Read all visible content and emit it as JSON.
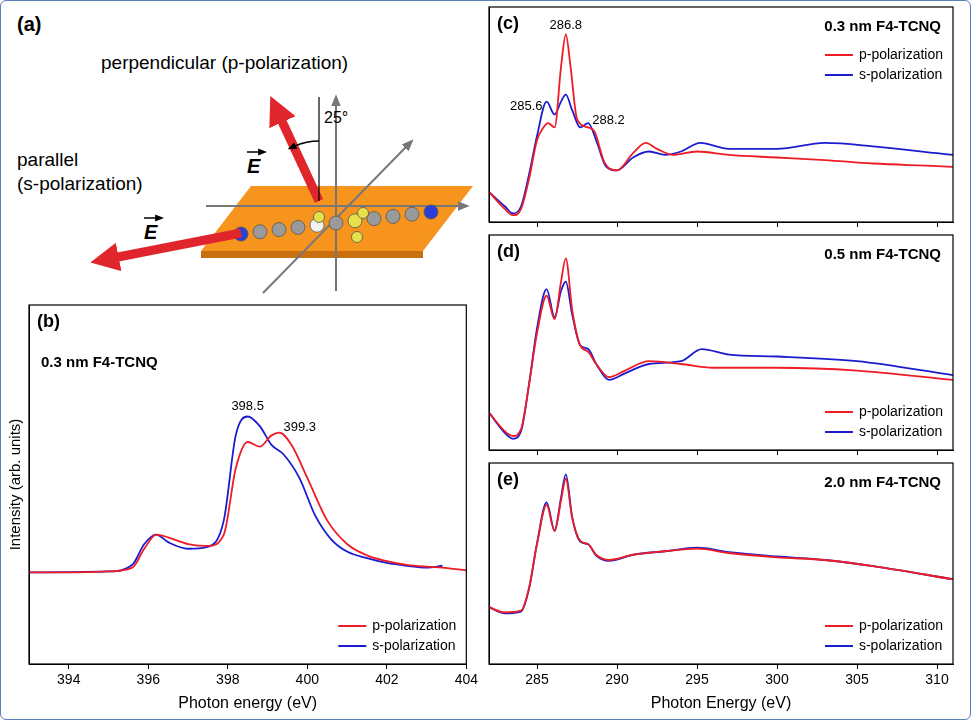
{
  "diagram": {
    "panel": "(a)",
    "p_label": "perpendicular (p-polarization)",
    "s_label": [
      "parallel",
      "(s-polarization)"
    ],
    "field_label": "E",
    "angle_label": "25°"
  },
  "chart_data": [
    {
      "panel": "(b)",
      "type": "line",
      "title": "0.3 nm F4-TCNQ",
      "x_label": "Photon energy (eV)",
      "y_label": "Intensity (arb. units)",
      "xlim": [
        393,
        404
      ],
      "xticks": [
        394,
        396,
        398,
        400,
        402,
        404
      ],
      "ylim": [
        0,
        3.8
      ],
      "tick_labels": "x",
      "grid": false,
      "legend": "lower right",
      "annotations": [
        398.5,
        399.3
      ],
      "series": [
        {
          "name": "p-polarization",
          "color": "#ee1c25",
          "x": [
            393,
            394,
            395,
            395.6,
            395.9,
            396.2,
            396.5,
            397,
            397.5,
            397.9,
            398.2,
            398.5,
            398.8,
            399.1,
            399.3,
            399.6,
            400,
            400.5,
            401,
            401.5,
            402,
            402.5,
            403,
            403.4,
            404
          ],
          "values": [
            0.97,
            0.97,
            0.98,
            1.02,
            1.22,
            1.37,
            1.34,
            1.27,
            1.25,
            1.37,
            2.07,
            2.35,
            2.3,
            2.42,
            2.45,
            2.32,
            1.97,
            1.52,
            1.27,
            1.15,
            1.09,
            1.05,
            1.03,
            1.02,
            0.99
          ]
        },
        {
          "name": "s-polarization",
          "color": "#1c1ccf",
          "x": [
            393,
            395,
            395.6,
            395.9,
            396.2,
            396.5,
            397,
            397.5,
            397.9,
            398.2,
            398.5,
            398.8,
            399.1,
            399.4,
            399.8,
            400.2,
            400.6,
            401,
            401.5,
            402,
            402.5,
            403,
            403.4
          ],
          "values": [
            0.97,
            0.98,
            1.05,
            1.27,
            1.37,
            1.29,
            1.22,
            1.24,
            1.52,
            2.42,
            2.62,
            2.52,
            2.32,
            2.22,
            1.97,
            1.57,
            1.32,
            1.19,
            1.12,
            1.07,
            1.04,
            1.02,
            1.04
          ]
        }
      ]
    },
    {
      "panel": "(c)",
      "type": "line",
      "title": "0.3 nm F4-TCNQ",
      "xlim": [
        282,
        311
      ],
      "xticks": [
        285,
        290,
        295,
        300,
        305,
        310
      ],
      "ylim": [
        -0.5,
        4.5
      ],
      "tick_labels": false,
      "grid": false,
      "legend": "upper right",
      "annotations": [
        285.6,
        286.8,
        288.2
      ],
      "series": [
        {
          "name": "p-polarization",
          "color": "#ee1c25",
          "x": [
            282,
            283,
            283.5,
            284,
            284.5,
            285,
            285.4,
            285.7,
            286.1,
            286.5,
            286.8,
            287.1,
            287.5,
            288.2,
            288.6,
            289.2,
            290,
            291,
            291.8,
            292.5,
            293.5,
            295,
            297,
            300,
            303,
            306,
            310,
            311
          ],
          "values": [
            0.2,
            -0.2,
            -0.34,
            -0.2,
            0.5,
            1.4,
            1.7,
            1.8,
            1.7,
            3.1,
            3.86,
            3.1,
            1.9,
            1.7,
            1.6,
            0.9,
            0.7,
            1.1,
            1.34,
            1.2,
            1.06,
            1.14,
            1.06,
            1.0,
            0.94,
            0.86,
            0.8,
            0.78
          ]
        },
        {
          "name": "s-polarization",
          "color": "#1c1ccf",
          "x": [
            282,
            283,
            283.5,
            284,
            284.5,
            285,
            285.6,
            286.1,
            286.5,
            286.8,
            287.2,
            287.7,
            288.2,
            288.7,
            289.3,
            290,
            291,
            292,
            293,
            294,
            295.2,
            297,
            300,
            303,
            306,
            310,
            311
          ],
          "values": [
            0.2,
            -0.14,
            -0.3,
            -0.14,
            0.6,
            1.5,
            2.3,
            2.0,
            2.3,
            2.46,
            2.1,
            1.7,
            1.8,
            1.4,
            0.8,
            0.7,
            1.0,
            1.14,
            1.06,
            1.14,
            1.34,
            1.2,
            1.2,
            1.34,
            1.26,
            1.1,
            1.06
          ]
        }
      ]
    },
    {
      "panel": "(d)",
      "type": "line",
      "title": "0.5 nm F4-TCNQ",
      "xlim": [
        282,
        311
      ],
      "xticks": [
        285,
        290,
        295,
        300,
        305,
        310
      ],
      "ylim": [
        -0.5,
        4.1
      ],
      "tick_labels": false,
      "grid": false,
      "legend": "lower right",
      "series": [
        {
          "name": "p-polarization",
          "color": "#ee1c25",
          "x": [
            282,
            283,
            283.5,
            284,
            284.5,
            285,
            285.6,
            286.1,
            286.5,
            286.8,
            287.2,
            287.7,
            288.2,
            288.7,
            289.5,
            290.5,
            292,
            294,
            296,
            300,
            305,
            311
          ],
          "values": [
            0.3,
            -0.1,
            -0.2,
            -0.06,
            0.9,
            2.0,
            2.8,
            2.3,
            3.1,
            3.6,
            2.5,
            1.74,
            1.6,
            1.34,
            1.06,
            1.2,
            1.4,
            1.34,
            1.26,
            1.26,
            1.2,
            1.0
          ]
        },
        {
          "name": "s-polarization",
          "color": "#1c1ccf",
          "x": [
            282,
            283,
            283.5,
            284,
            284.5,
            285,
            285.6,
            286.1,
            286.5,
            286.8,
            287.2,
            287.7,
            288.2,
            288.7,
            289.5,
            290.5,
            292,
            294,
            295.3,
            297,
            300,
            305,
            311
          ],
          "values": [
            0.3,
            -0.14,
            -0.26,
            -0.1,
            0.9,
            2.1,
            2.94,
            2.34,
            2.9,
            3.1,
            2.4,
            1.74,
            1.66,
            1.34,
            1.0,
            1.14,
            1.34,
            1.4,
            1.66,
            1.54,
            1.5,
            1.4,
            1.1
          ]
        }
      ]
    },
    {
      "panel": "(e)",
      "type": "line",
      "title": "2.0 nm F4-TCNQ",
      "x_label": "Photon Energy (eV)",
      "xlim": [
        282,
        311
      ],
      "xticks": [
        285,
        290,
        295,
        300,
        305,
        310
      ],
      "ylim": [
        -0.5,
        4.1
      ],
      "tick_labels": "x",
      "grid": false,
      "legend": "lower right",
      "series": [
        {
          "name": "p-polarization",
          "color": "#ee1c25",
          "x": [
            282,
            283,
            284,
            284.5,
            285,
            285.6,
            286.1,
            286.5,
            286.8,
            287.2,
            287.7,
            288.2,
            288.7,
            289.5,
            291,
            293,
            295,
            297,
            300,
            303,
            306,
            311
          ],
          "values": [
            0.8,
            0.68,
            0.72,
            1.24,
            2.24,
            3.14,
            2.54,
            3.24,
            3.74,
            2.84,
            2.32,
            2.24,
            2.0,
            1.88,
            2.0,
            2.08,
            2.14,
            2.04,
            1.94,
            1.88,
            1.74,
            1.44
          ]
        },
        {
          "name": "s-polarization",
          "color": "#1c1ccf",
          "x": [
            282,
            283,
            284,
            284.5,
            285,
            285.6,
            286.1,
            286.5,
            286.8,
            287.2,
            287.7,
            288.2,
            288.7,
            289.5,
            291,
            293,
            295,
            297,
            300,
            303,
            306,
            311
          ],
          "values": [
            0.8,
            0.66,
            0.7,
            1.22,
            2.26,
            3.2,
            2.56,
            3.3,
            3.84,
            2.86,
            2.3,
            2.24,
            1.98,
            1.86,
            2.0,
            2.08,
            2.16,
            2.06,
            1.96,
            1.88,
            1.74,
            1.44
          ]
        }
      ]
    }
  ]
}
